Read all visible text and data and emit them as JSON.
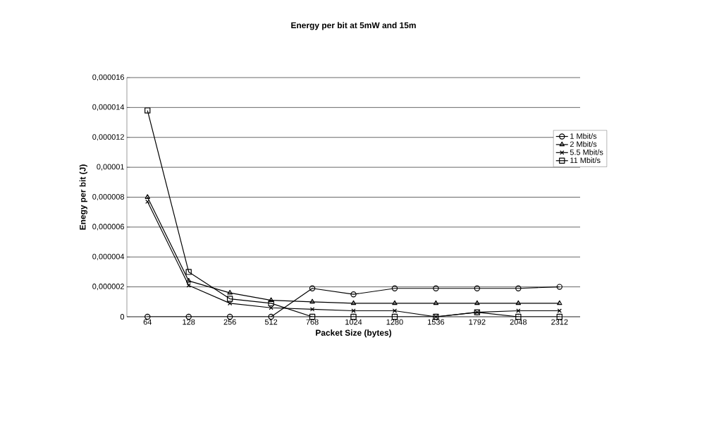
{
  "chart_data": {
    "type": "line",
    "title": "Energy per bit at 5mW and 15m",
    "xlabel": "Packet Size (bytes)",
    "ylabel": "Enegy per bit (J)",
    "categories": [
      "64",
      "128",
      "256",
      "512",
      "768",
      "1024",
      "1280",
      "1536",
      "1792",
      "2048",
      "2312"
    ],
    "ylim": [
      0,
      1.6e-05
    ],
    "yticks": [
      0,
      {
        "value": 2e-06,
        "label": "0,000002"
      },
      {
        "value": 4e-06,
        "label": "0,000004"
      },
      {
        "value": 6e-06,
        "label": "0,000006"
      },
      {
        "value": 8e-06,
        "label": "0,000008"
      },
      {
        "value": 1e-05,
        "label": "0,00001"
      },
      {
        "value": 1.2e-05,
        "label": "0,000012"
      },
      {
        "value": 1.4e-05,
        "label": "0,000014"
      },
      {
        "value": 1.6e-05,
        "label": "0,000016"
      }
    ],
    "grid": "y",
    "legend": "right",
    "series": [
      {
        "name": "1 Mbit/s",
        "color": "#000000",
        "marker": "circle",
        "values": [
          0,
          0,
          0,
          0,
          1.9e-06,
          1.5e-06,
          1.9e-06,
          1.9e-06,
          1.9e-06,
          1.9e-06,
          2e-06
        ]
      },
      {
        "name": "2 Mbit/s",
        "color": "#000000",
        "marker": "triangle",
        "values": [
          8e-06,
          2.4e-06,
          1.6e-06,
          1.1e-06,
          1e-06,
          9e-07,
          9e-07,
          9e-07,
          9e-07,
          9e-07,
          9e-07
        ]
      },
      {
        "name": "5.5 Mbit/s",
        "color": "#000000",
        "marker": "cross",
        "values": [
          7.7e-06,
          2.1e-06,
          9e-07,
          6e-07,
          5e-07,
          4e-07,
          4e-07,
          0,
          3e-07,
          4e-07,
          4e-07
        ]
      },
      {
        "name": "11 Mbit/s",
        "color": "#000000",
        "marker": "square",
        "values": [
          1.38e-05,
          3e-06,
          1.2e-06,
          9e-07,
          0,
          0,
          0,
          0,
          3e-07,
          0,
          0
        ]
      }
    ]
  }
}
